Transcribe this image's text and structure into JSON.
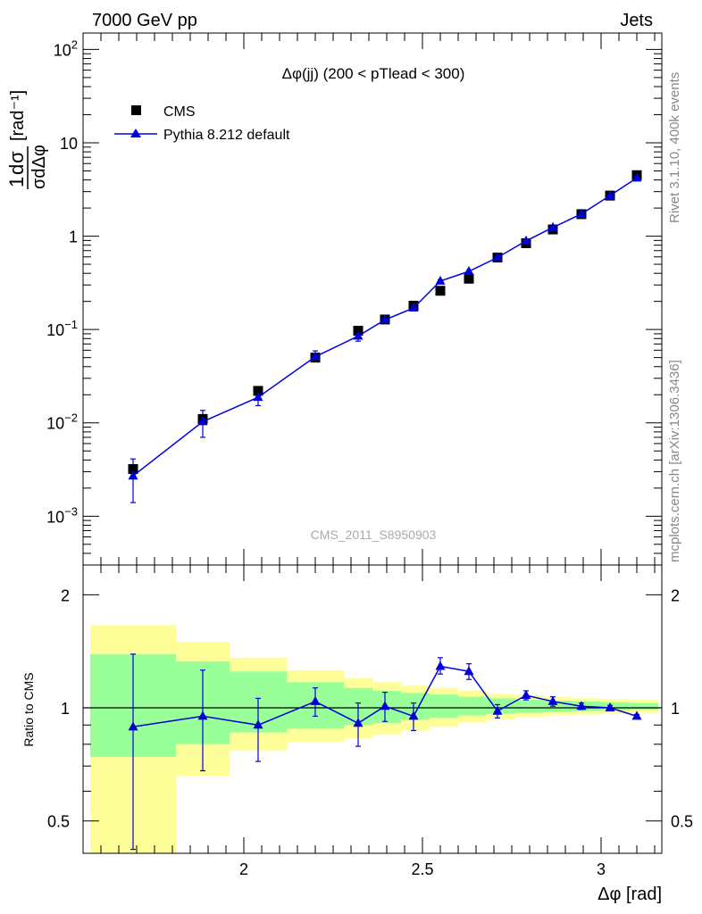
{
  "header": {
    "left": "7000 GeV pp",
    "right": "Jets"
  },
  "side_text": {
    "rivet": "Rivet 3.1.10,  400k events",
    "mcplots": "mcplots.cern.ch [arXiv:1306.3436]"
  },
  "analysis_id": "CMS_2011_S8950903",
  "chart_data": [
    {
      "type": "scatter",
      "title": "Δφ(jj) (200 < pTlead <  300)",
      "ylabel": "1/σ dσ/dΔφ [rad⁻¹]",
      "yscale": "log",
      "ylim": [
        0.0003,
        150
      ],
      "xlim": [
        1.55,
        3.17
      ],
      "yticks": [
        {
          "value": 0.001,
          "base": "10",
          "exp": "−3"
        },
        {
          "value": 0.01,
          "base": "10",
          "exp": "−2"
        },
        {
          "value": 0.1,
          "base": "10",
          "exp": "−1"
        },
        {
          "value": 1,
          "base": "1",
          "exp": ""
        },
        {
          "value": 10,
          "base": "10",
          "exp": ""
        },
        {
          "value": 100,
          "base": "10",
          "exp": "2"
        }
      ],
      "legend": {
        "position": "top-left",
        "entries": [
          "CMS",
          "Pythia 8.212 default"
        ]
      },
      "series": [
        {
          "name": "CMS",
          "marker": "square",
          "color": "#000000",
          "x": [
            1.69,
            1.885,
            2.04,
            2.2,
            2.32,
            2.395,
            2.475,
            2.55,
            2.63,
            2.71,
            2.79,
            2.865,
            2.945,
            3.025,
            3.1
          ],
          "y": [
            0.0032,
            0.011,
            0.022,
            0.05,
            0.097,
            0.128,
            0.18,
            0.26,
            0.35,
            0.59,
            0.84,
            1.18,
            1.72,
            2.72,
            4.5
          ]
        },
        {
          "name": "Pythia 8.212 default",
          "marker": "triangle",
          "color": "#0000dd",
          "x": [
            1.69,
            1.885,
            2.04,
            2.2,
            2.32,
            2.395,
            2.475,
            2.55,
            2.63,
            2.71,
            2.79,
            2.865,
            2.945,
            3.025,
            3.1
          ],
          "y": [
            0.0027,
            0.0103,
            0.0188,
            0.051,
            0.085,
            0.127,
            0.17,
            0.33,
            0.42,
            0.59,
            0.89,
            1.24,
            1.73,
            2.72,
            4.2
          ],
          "yerr_low": [
            0.0013,
            0.0033,
            0.0035,
            0.006,
            0.01,
            0.01,
            0.012,
            0.01,
            0.01,
            0.01,
            0.01,
            0.01,
            0.01,
            0.01,
            0.01
          ],
          "yerr_high": [
            0.0014,
            0.0033,
            0.004,
            0.008,
            0.012,
            0.012,
            0.015,
            0.01,
            0.01,
            0.01,
            0.01,
            0.01,
            0.01,
            0.01,
            0.01
          ]
        }
      ]
    },
    {
      "type": "scatter",
      "ylabel": "Ratio to CMS",
      "xlabel": "Δφ [rad]",
      "yscale": "log",
      "ylim": [
        0.41,
        2.4
      ],
      "xlim": [
        1.55,
        3.17
      ],
      "xticks": [
        2,
        2.5,
        3
      ],
      "xticklabels": [
        "2",
        "2.5",
        "3"
      ],
      "yticks": [
        0.5,
        1,
        2
      ],
      "yticklabels": [
        "0.5",
        "1",
        "2"
      ],
      "bands": {
        "edges": [
          1.57,
          1.81,
          1.96,
          2.12,
          2.28,
          2.36,
          2.44,
          2.52,
          2.6,
          2.68,
          2.76,
          2.84,
          2.92,
          3.0,
          3.08,
          3.16
        ],
        "inner_low": [
          0.74,
          0.8,
          0.86,
          0.88,
          0.9,
          0.91,
          0.93,
          0.94,
          0.955,
          0.965,
          0.97,
          0.975,
          0.98,
          0.985,
          0.99
        ],
        "inner_high": [
          1.39,
          1.33,
          1.25,
          1.17,
          1.13,
          1.11,
          1.095,
          1.085,
          1.07,
          1.06,
          1.05,
          1.045,
          1.04,
          1.035,
          1.03
        ],
        "outer_low": [
          0.41,
          0.66,
          0.77,
          0.81,
          0.83,
          0.85,
          0.87,
          0.89,
          0.915,
          0.93,
          0.945,
          0.955,
          0.96,
          0.965,
          0.97
        ],
        "outer_high": [
          1.66,
          1.5,
          1.36,
          1.26,
          1.2,
          1.17,
          1.145,
          1.13,
          1.11,
          1.09,
          1.08,
          1.07,
          1.06,
          1.055,
          1.05
        ],
        "inner_color": "#99ff99",
        "outer_color": "#ffff99"
      },
      "series": [
        {
          "name": "Pythia 8.212 default",
          "marker": "triangle",
          "color": "#0000dd",
          "x": [
            1.69,
            1.885,
            2.04,
            2.2,
            2.32,
            2.395,
            2.475,
            2.55,
            2.63,
            2.71,
            2.79,
            2.865,
            2.945,
            3.025,
            3.1
          ],
          "y": [
            0.89,
            0.95,
            0.9,
            1.04,
            0.91,
            1.01,
            0.95,
            1.29,
            1.25,
            0.98,
            1.08,
            1.04,
            1.01,
            1.0,
            0.95
          ],
          "yerr_low": [
            0.47,
            0.27,
            0.18,
            0.09,
            0.12,
            0.09,
            0.08,
            0.06,
            0.06,
            0.04,
            0.03,
            0.03,
            0.02,
            0.015,
            0.01
          ],
          "yerr_high": [
            0.5,
            0.31,
            0.16,
            0.09,
            0.12,
            0.09,
            0.08,
            0.07,
            0.06,
            0.04,
            0.03,
            0.03,
            0.02,
            0.015,
            0.01
          ]
        }
      ]
    }
  ]
}
